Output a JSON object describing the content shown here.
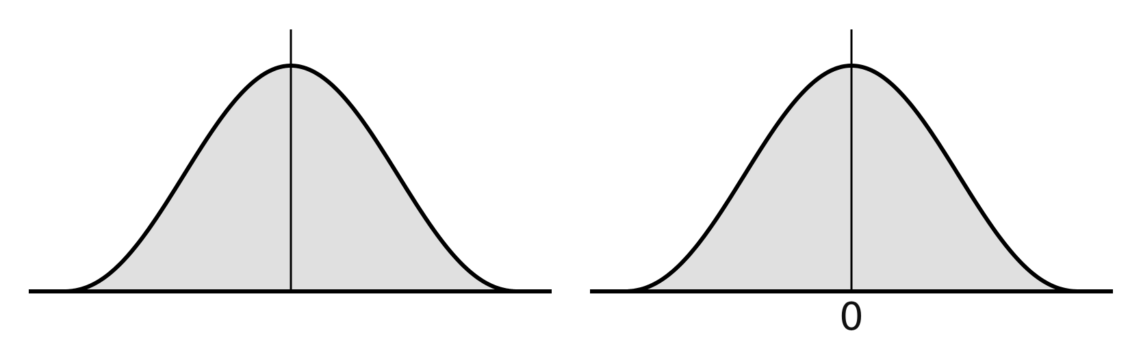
{
  "figure": {
    "colors": {
      "curve": "#000000",
      "fill": "#e0e0e0",
      "axis": "#000000",
      "background": "#ffffff"
    },
    "panels": [
      {
        "id": "left",
        "center_label": ""
      },
      {
        "id": "right",
        "center_label": "0"
      }
    ]
  }
}
